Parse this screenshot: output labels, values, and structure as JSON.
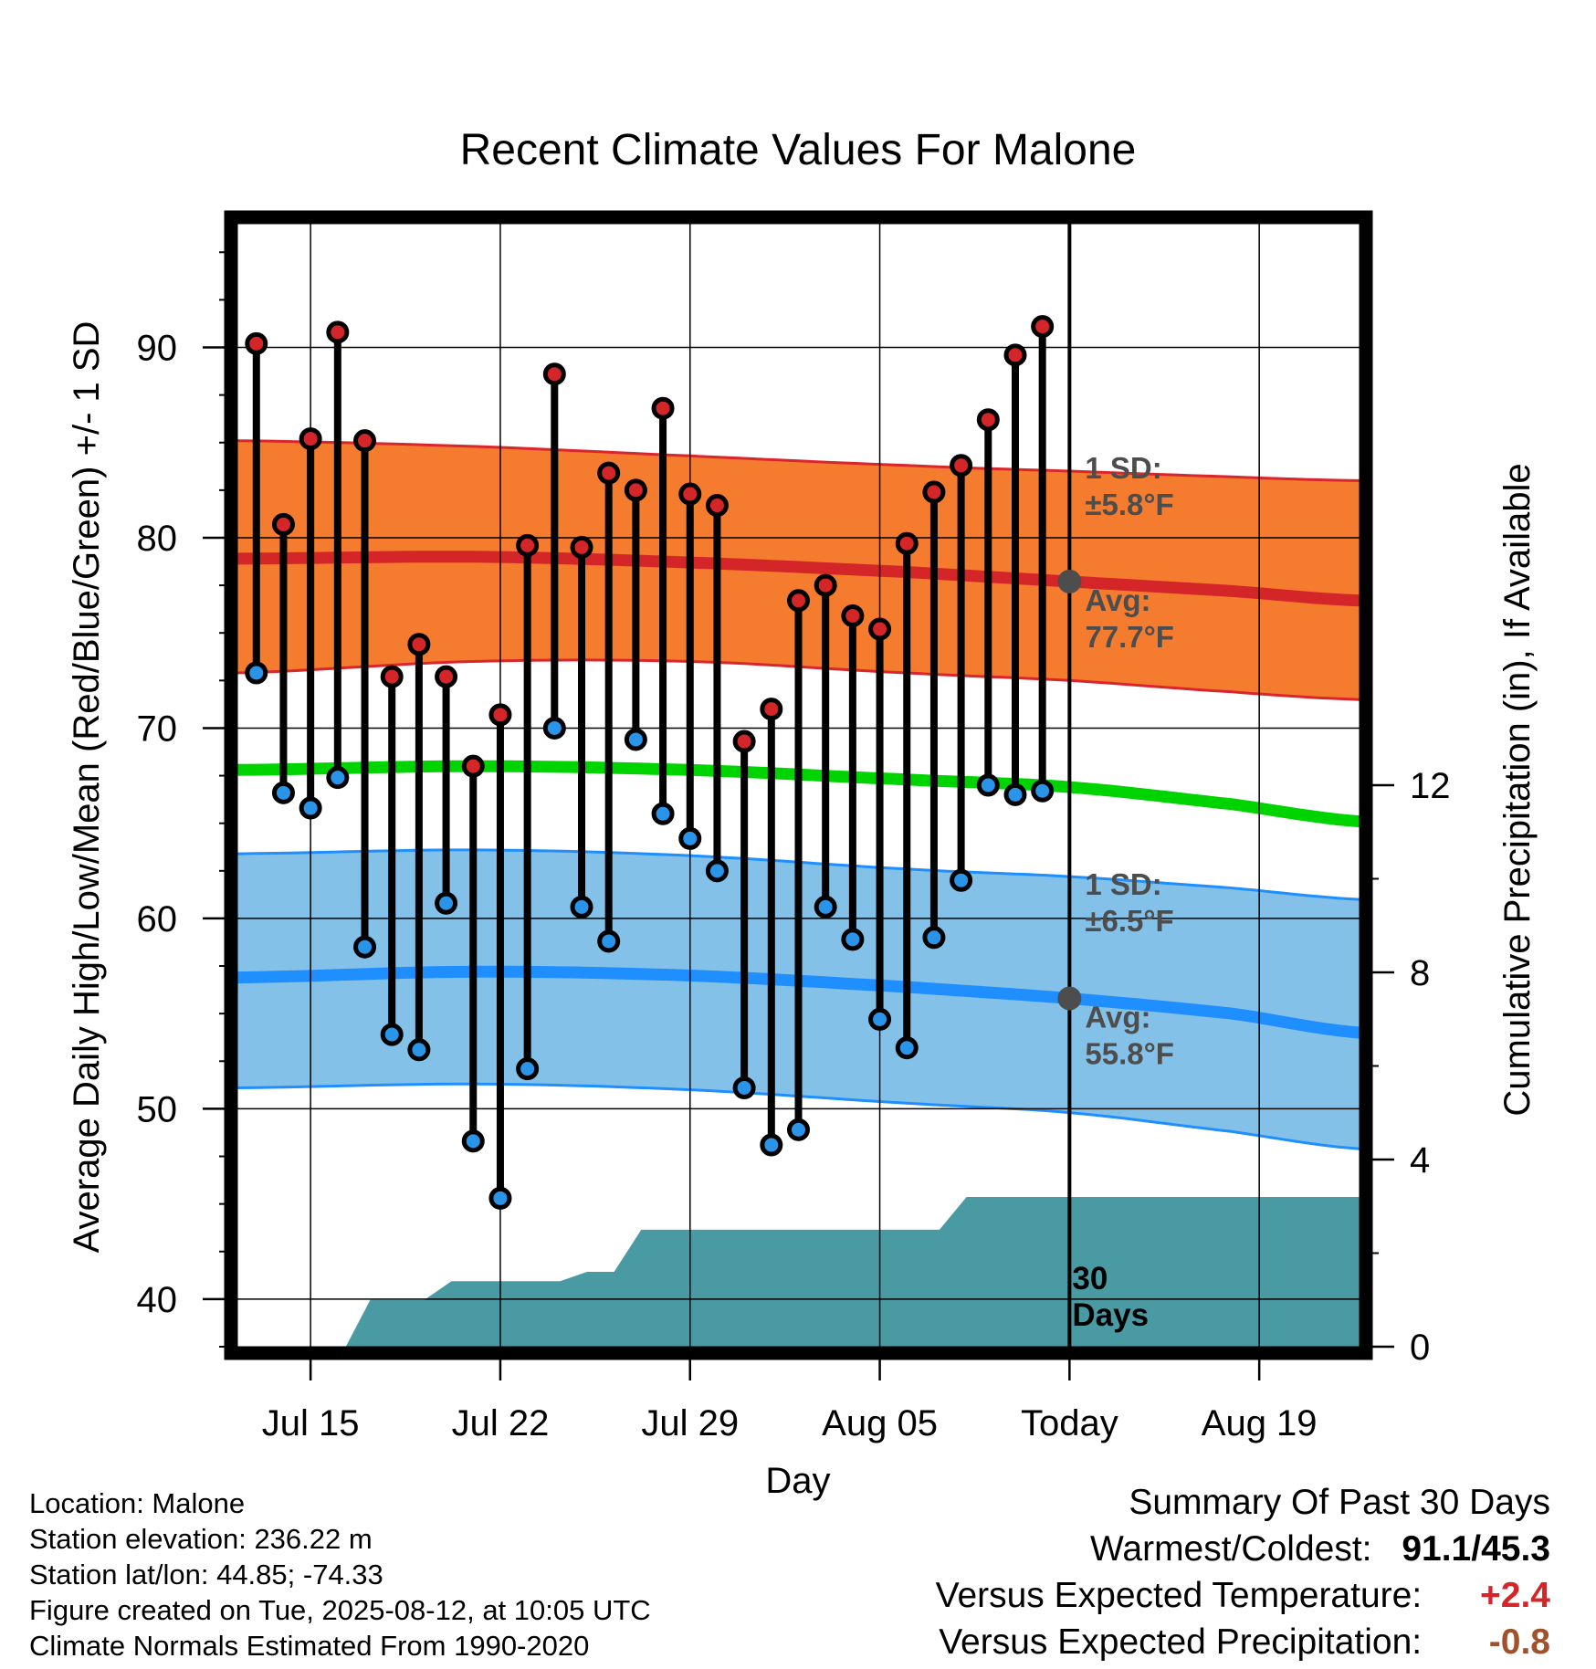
{
  "chart_data": {
    "type": "line",
    "title": "Recent Climate Values For Malone",
    "xlabel": "Day",
    "ylabel": "Average Daily High/Low/Mean (Red/Blue/Green) +/- 1 SD",
    "y2label": "Cumulative Precipitation (in), If Available",
    "ylim": [
      37.5,
      96.5
    ],
    "y2lim": [
      0,
      24
    ],
    "xlim": [
      -0.7,
      40.7
    ],
    "x_ticks": [
      {
        "x": 2,
        "label": "Jul 15"
      },
      {
        "x": 9,
        "label": "Jul 22"
      },
      {
        "x": 16,
        "label": "Jul 29"
      },
      {
        "x": 23,
        "label": "Aug 05"
      },
      {
        "x": 30,
        "label": "Today"
      },
      {
        "x": 37,
        "label": "Aug 19"
      }
    ],
    "y_ticks": [
      40,
      50,
      60,
      70,
      80,
      90
    ],
    "y2_ticks": [
      0,
      4,
      8,
      12
    ],
    "grid": true,
    "today_x": 30,
    "daily_highs": [
      90.2,
      80.7,
      85.2,
      90.8,
      85.1,
      72.7,
      74.4,
      72.7,
      68.0,
      70.7,
      79.6,
      88.6,
      79.5,
      83.4,
      82.5,
      86.8,
      82.3,
      81.7,
      69.3,
      71.0,
      76.7,
      77.5,
      75.9,
      75.2,
      79.7,
      82.4,
      83.8,
      86.2,
      89.6,
      91.1
    ],
    "daily_lows": [
      72.9,
      66.6,
      65.8,
      67.4,
      58.5,
      53.9,
      53.1,
      60.8,
      48.3,
      45.3,
      52.1,
      70.0,
      60.6,
      58.8,
      69.4,
      65.5,
      64.2,
      62.5,
      51.1,
      48.1,
      48.9,
      60.6,
      58.9,
      54.7,
      53.2,
      59.0,
      62.0,
      67.0,
      66.5,
      66.7
    ],
    "normal_high": {
      "x": [
        -0.7,
        8,
        16,
        24,
        30,
        36,
        40.7
      ],
      "mean": [
        78.9,
        79.0,
        78.7,
        78.2,
        77.7,
        77.2,
        76.7
      ],
      "upper": [
        85.1,
        84.8,
        84.3,
        83.8,
        83.5,
        83.2,
        83.0
      ],
      "lower": [
        72.9,
        73.5,
        73.5,
        72.9,
        72.5,
        71.9,
        71.5
      ],
      "sd_label": "1 SD:",
      "sd_value": "±5.8°F",
      "avg_label": "Avg:",
      "avg_value": "77.7°F"
    },
    "normal_low": {
      "x": [
        -0.7,
        8,
        16,
        24,
        30,
        36,
        40.7
      ],
      "mean": [
        56.9,
        57.2,
        57.0,
        56.4,
        55.8,
        55.0,
        54.0
      ],
      "upper": [
        63.4,
        63.6,
        63.3,
        62.6,
        62.2,
        61.6,
        61.0
      ],
      "lower": [
        51.1,
        51.3,
        51.0,
        50.3,
        49.8,
        48.8,
        47.9
      ],
      "sd_label": "1 SD:",
      "sd_value": "±6.5°F",
      "avg_label": "Avg:",
      "avg_value": "55.8°F"
    },
    "normal_mean": {
      "x": [
        -0.7,
        8,
        16,
        24,
        30,
        36,
        40.7
      ],
      "values": [
        67.8,
        68.0,
        67.8,
        67.3,
        66.9,
        66.0,
        65.1
      ]
    },
    "precip_cumulative": {
      "x": [
        3.3,
        4.2,
        6.2,
        7.2,
        11.2,
        12.2,
        13.2,
        14.2,
        25.2,
        26.2,
        40.7
      ],
      "values": [
        0.0,
        1.0,
        1.0,
        1.4,
        1.4,
        1.6,
        1.6,
        2.5,
        2.5,
        3.2,
        3.2
      ]
    },
    "window_label": "30",
    "window_label_2": "Days",
    "colors": {
      "high_band": "#f57c2e",
      "high_band_edge": "#d9262c",
      "high_mean": "#d42629",
      "low_band": "#84c1e8",
      "low_band_edge": "#1f8fff",
      "low_mean": "#1f8fff",
      "mean_line": "#00d400",
      "precip": "#4a9aa4",
      "high_dot": "#d42629",
      "low_dot": "#2a94e8",
      "avg_marker": "#4d4d4d",
      "band_text": "#4d4d4d"
    }
  },
  "footer": {
    "location": "Location: Malone",
    "elevation": "Station elevation: 236.22 m",
    "latlon": "Station lat/lon: 44.85; -74.33",
    "created": "Figure created on Tue, 2025-08-12, at 10:05 UTC",
    "normals": "Climate Normals Estimated From 1990-2020"
  },
  "summary": {
    "title": "Summary Of Past 30 Days",
    "warm_cold_label": "Warmest/Coldest:",
    "warm_cold_value": "91.1/45.3",
    "temp_label": "Versus Expected Temperature:",
    "temp_value": "+2.4",
    "temp_color": "#d42629",
    "precip_label": "Versus Expected Precipitation:",
    "precip_value": "-0.8",
    "precip_color": "#a0522d"
  }
}
